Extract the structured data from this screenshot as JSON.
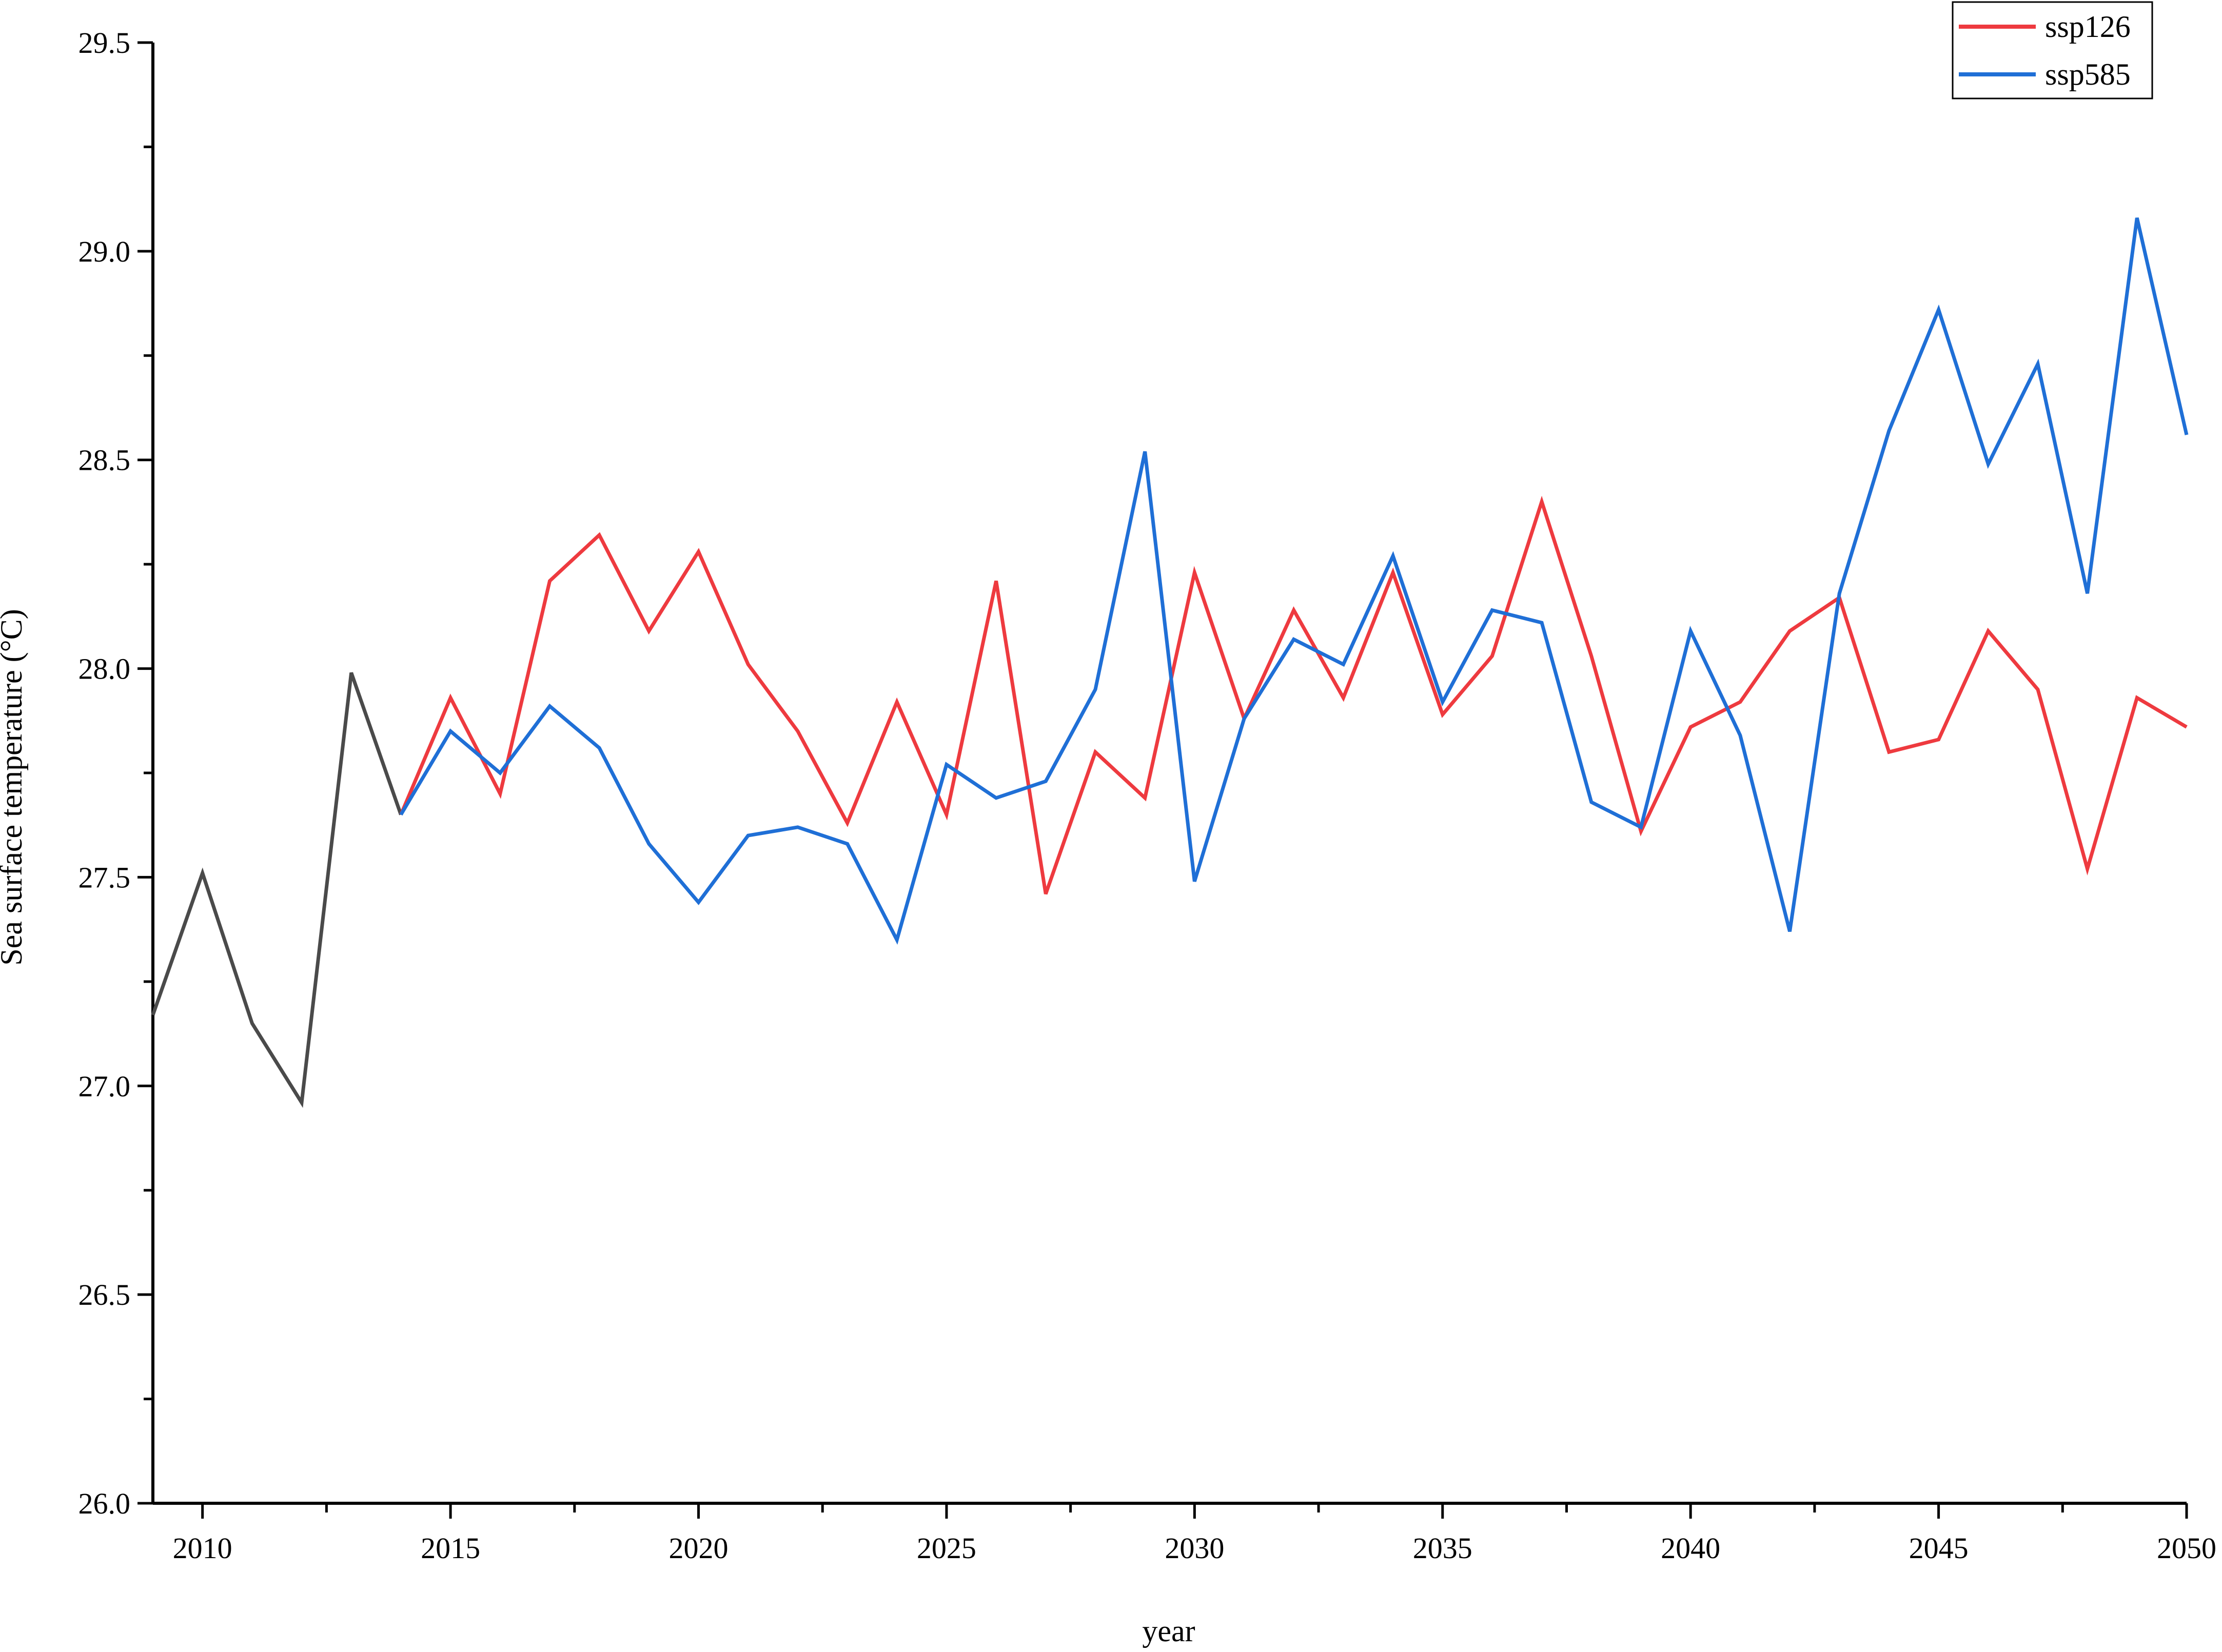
{
  "chart_data": {
    "type": "line",
    "title": "",
    "xlabel": "year",
    "ylabel": "Sea surface temperature (°C)",
    "xlim": [
      2009,
      2050
    ],
    "ylim": [
      26.0,
      29.5
    ],
    "x_ticks": [
      2010,
      2015,
      2020,
      2025,
      2030,
      2035,
      2040,
      2045,
      2050
    ],
    "y_ticks": [
      "26.0",
      "26.5",
      "27.0",
      "27.5",
      "28.0",
      "28.5",
      "29.0",
      "29.5"
    ],
    "grid": false,
    "legend_position": "top-right",
    "series": [
      {
        "name": "",
        "color": "#4a4a4a",
        "x": [
          2009,
          2010,
          2011,
          2012,
          2013,
          2014
        ],
        "y": [
          27.17,
          27.51,
          27.15,
          26.96,
          27.99,
          27.65
        ]
      },
      {
        "name": "ssp126",
        "color": "#ee3a3f",
        "x": [
          2014,
          2015,
          2016,
          2017,
          2018,
          2019,
          2020,
          2021,
          2022,
          2023,
          2024,
          2025,
          2026,
          2027,
          2028,
          2029,
          2030,
          2031,
          2032,
          2033,
          2034,
          2035,
          2036,
          2037,
          2038,
          2039,
          2040,
          2041,
          2042,
          2043,
          2044,
          2045,
          2046,
          2047,
          2048,
          2049,
          2050
        ],
        "y": [
          27.65,
          27.93,
          27.7,
          28.21,
          28.32,
          28.09,
          28.28,
          28.01,
          27.85,
          27.63,
          27.92,
          27.65,
          28.21,
          27.46,
          27.8,
          27.69,
          28.23,
          27.88,
          28.14,
          27.93,
          28.23,
          27.89,
          28.03,
          28.4,
          28.03,
          27.61,
          27.86,
          27.92,
          28.09,
          28.17,
          27.8,
          27.83,
          28.09,
          27.95,
          27.52,
          27.93,
          27.86
        ]
      },
      {
        "name": "ssp585",
        "color": "#1f6fd6",
        "x": [
          2014,
          2015,
          2016,
          2017,
          2018,
          2019,
          2020,
          2021,
          2022,
          2023,
          2024,
          2025,
          2026,
          2027,
          2028,
          2029,
          2030,
          2031,
          2032,
          2033,
          2034,
          2035,
          2036,
          2037,
          2038,
          2039,
          2040,
          2041,
          2042,
          2043,
          2044,
          2045,
          2046,
          2047,
          2048,
          2049,
          2050
        ],
        "y": [
          27.65,
          27.85,
          27.75,
          27.91,
          27.81,
          27.58,
          27.44,
          27.6,
          27.62,
          27.58,
          27.35,
          27.77,
          27.69,
          27.73,
          27.95,
          28.52,
          27.49,
          27.88,
          28.07,
          28.01,
          28.27,
          27.92,
          28.14,
          28.11,
          27.68,
          27.62,
          28.09,
          27.84,
          27.37,
          28.18,
          28.57,
          28.86,
          28.49,
          28.73,
          28.18,
          29.08,
          28.56
        ]
      }
    ]
  }
}
